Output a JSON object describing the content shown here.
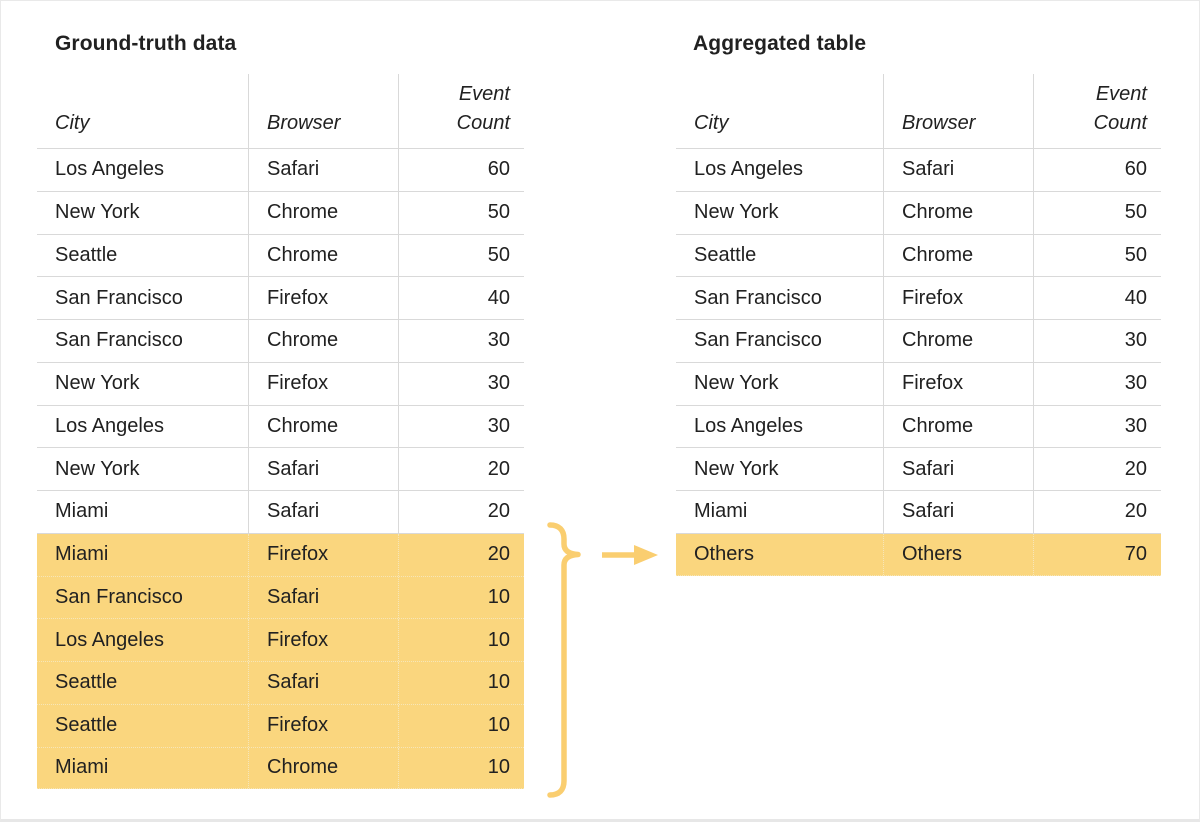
{
  "figure": {
    "left_table": {
      "title": "Ground-truth data",
      "headers": [
        "City",
        "Browser",
        "Event Count"
      ],
      "rows": [
        {
          "city": "Los Angeles",
          "browser": "Safari",
          "count": "60",
          "highlighted": false
        },
        {
          "city": "New York",
          "browser": "Chrome",
          "count": "50",
          "highlighted": false
        },
        {
          "city": "Seattle",
          "browser": "Chrome",
          "count": "50",
          "highlighted": false
        },
        {
          "city": "San Francisco",
          "browser": "Firefox",
          "count": "40",
          "highlighted": false
        },
        {
          "city": "San Francisco",
          "browser": "Chrome",
          "count": "30",
          "highlighted": false
        },
        {
          "city": "New York",
          "browser": "Firefox",
          "count": "30",
          "highlighted": false
        },
        {
          "city": "Los Angeles",
          "browser": "Chrome",
          "count": "30",
          "highlighted": false
        },
        {
          "city": "New York",
          "browser": "Safari",
          "count": "20",
          "highlighted": false
        },
        {
          "city": "Miami",
          "browser": "Safari",
          "count": "20",
          "highlighted": false
        },
        {
          "city": "Miami",
          "browser": "Firefox",
          "count": "20",
          "highlighted": true
        },
        {
          "city": "San Francisco",
          "browser": "Safari",
          "count": "10",
          "highlighted": true
        },
        {
          "city": "Los Angeles",
          "browser": "Firefox",
          "count": "10",
          "highlighted": true
        },
        {
          "city": "Seattle",
          "browser": "Safari",
          "count": "10",
          "highlighted": true
        },
        {
          "city": "Seattle",
          "browser": "Firefox",
          "count": "10",
          "highlighted": true
        },
        {
          "city": "Miami",
          "browser": "Chrome",
          "count": "10",
          "highlighted": true
        }
      ]
    },
    "right_table": {
      "title": "Aggregated table",
      "headers": [
        "City",
        "Browser",
        "Event Count"
      ],
      "rows": [
        {
          "city": "Los Angeles",
          "browser": "Safari",
          "count": "60",
          "highlighted": false
        },
        {
          "city": "New York",
          "browser": "Chrome",
          "count": "50",
          "highlighted": false
        },
        {
          "city": "Seattle",
          "browser": "Chrome",
          "count": "50",
          "highlighted": false
        },
        {
          "city": "San Francisco",
          "browser": "Firefox",
          "count": "40",
          "highlighted": false
        },
        {
          "city": "San Francisco",
          "browser": "Chrome",
          "count": "30",
          "highlighted": false
        },
        {
          "city": "New York",
          "browser": "Firefox",
          "count": "30",
          "highlighted": false
        },
        {
          "city": "Los Angeles",
          "browser": "Chrome",
          "count": "30",
          "highlighted": false
        },
        {
          "city": "New York",
          "browser": "Safari",
          "count": "20",
          "highlighted": false
        },
        {
          "city": "Miami",
          "browser": "Safari",
          "count": "20",
          "highlighted": false
        },
        {
          "city": "Others",
          "browser": "Others",
          "count": "70",
          "highlighted": true
        }
      ]
    },
    "annotation": {
      "brace_icon": "curly-brace-right-icon",
      "arrow_icon": "arrow-right-icon"
    },
    "colors": {
      "text": "#212121",
      "border": "#D9D9D9",
      "highlight": "#FAD67E",
      "highlight_border": "#F6E6B8",
      "annotation": "#FACE70"
    }
  }
}
